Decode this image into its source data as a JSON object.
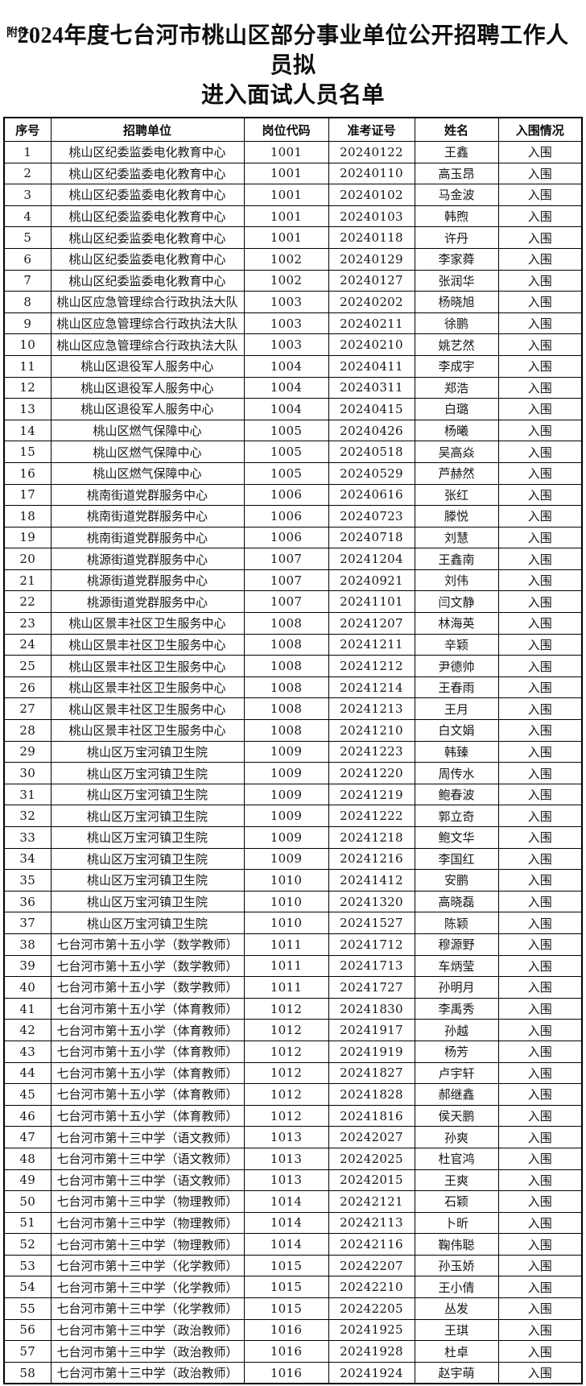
{
  "attachment_label": "附件1：",
  "title": {
    "line1": "2024年度七台河市桃山区部分事业单位公开招聘工作人员拟",
    "line2": "进入面试人员名单"
  },
  "colors": {
    "text": "#1a1a1a",
    "border": "#000000",
    "background": "#ffffff"
  },
  "table": {
    "headers": [
      "序号",
      "招聘单位",
      "岗位代码",
      "准考证号",
      "姓名",
      "入围情况"
    ],
    "rows": [
      [
        "1",
        "桃山区纪委监委电化教育中心",
        "1001",
        "20240122",
        "王鑫",
        "入围"
      ],
      [
        "2",
        "桃山区纪委监委电化教育中心",
        "1001",
        "20240110",
        "高玉昂",
        "入围"
      ],
      [
        "3",
        "桃山区纪委监委电化教育中心",
        "1001",
        "20240102",
        "马金波",
        "入围"
      ],
      [
        "4",
        "桃山区纪委监委电化教育中心",
        "1001",
        "20240103",
        "韩煦",
        "入围"
      ],
      [
        "5",
        "桃山区纪委监委电化教育中心",
        "1001",
        "20240118",
        "许丹",
        "入围"
      ],
      [
        "6",
        "桃山区纪委监委电化教育中心",
        "1002",
        "20240129",
        "李家蕣",
        "入围"
      ],
      [
        "7",
        "桃山区纪委监委电化教育中心",
        "1002",
        "20240127",
        "张润华",
        "入围"
      ],
      [
        "8",
        "桃山区应急管理综合行政执法大队",
        "1003",
        "20240202",
        "杨晓旭",
        "入围"
      ],
      [
        "9",
        "桃山区应急管理综合行政执法大队",
        "1003",
        "20240211",
        "徐鹏",
        "入围"
      ],
      [
        "10",
        "桃山区应急管理综合行政执法大队",
        "1003",
        "20240210",
        "姚艺然",
        "入围"
      ],
      [
        "11",
        "桃山区退役军人服务中心",
        "1004",
        "20240411",
        "李成宇",
        "入围"
      ],
      [
        "12",
        "桃山区退役军人服务中心",
        "1004",
        "20240311",
        "郑浩",
        "入围"
      ],
      [
        "13",
        "桃山区退役军人服务中心",
        "1004",
        "20240415",
        "白璐",
        "入围"
      ],
      [
        "14",
        "桃山区燃气保障中心",
        "1005",
        "20240426",
        "杨曦",
        "入围"
      ],
      [
        "15",
        "桃山区燃气保障中心",
        "1005",
        "20240518",
        "吴高焱",
        "入围"
      ],
      [
        "16",
        "桃山区燃气保障中心",
        "1005",
        "20240529",
        "芦赫然",
        "入围"
      ],
      [
        "17",
        "桃南街道党群服务中心",
        "1006",
        "20240616",
        "张红",
        "入围"
      ],
      [
        "18",
        "桃南街道党群服务中心",
        "1006",
        "20240723",
        "滕悦",
        "入围"
      ],
      [
        "19",
        "桃南街道党群服务中心",
        "1006",
        "20240718",
        "刘慧",
        "入围"
      ],
      [
        "20",
        "桃源街道党群服务中心",
        "1007",
        "20241204",
        "王鑫南",
        "入围"
      ],
      [
        "21",
        "桃源街道党群服务中心",
        "1007",
        "20240921",
        "刘伟",
        "入围"
      ],
      [
        "22",
        "桃源街道党群服务中心",
        "1007",
        "20241101",
        "闫文静",
        "入围"
      ],
      [
        "23",
        "桃山区景丰社区卫生服务中心",
        "1008",
        "20241207",
        "林海英",
        "入围"
      ],
      [
        "24",
        "桃山区景丰社区卫生服务中心",
        "1008",
        "20241211",
        "辛颖",
        "入围"
      ],
      [
        "25",
        "桃山区景丰社区卫生服务中心",
        "1008",
        "20241212",
        "尹德帅",
        "入围"
      ],
      [
        "26",
        "桃山区景丰社区卫生服务中心",
        "1008",
        "20241214",
        "王春雨",
        "入围"
      ],
      [
        "27",
        "桃山区景丰社区卫生服务中心",
        "1008",
        "20241213",
        "王月",
        "入围"
      ],
      [
        "28",
        "桃山区景丰社区卫生服务中心",
        "1008",
        "20241210",
        "白文娟",
        "入围"
      ],
      [
        "29",
        "桃山区万宝河镇卫生院",
        "1009",
        "20241223",
        "韩臻",
        "入围"
      ],
      [
        "30",
        "桃山区万宝河镇卫生院",
        "1009",
        "20241220",
        "周传水",
        "入围"
      ],
      [
        "31",
        "桃山区万宝河镇卫生院",
        "1009",
        "20241219",
        "鲍春波",
        "入围"
      ],
      [
        "32",
        "桃山区万宝河镇卫生院",
        "1009",
        "20241222",
        "郭立奇",
        "入围"
      ],
      [
        "33",
        "桃山区万宝河镇卫生院",
        "1009",
        "20241218",
        "鲍文华",
        "入围"
      ],
      [
        "34",
        "桃山区万宝河镇卫生院",
        "1009",
        "20241216",
        "李国红",
        "入围"
      ],
      [
        "35",
        "桃山区万宝河镇卫生院",
        "1010",
        "20241412",
        "安鹏",
        "入围"
      ],
      [
        "36",
        "桃山区万宝河镇卫生院",
        "1010",
        "20241320",
        "高晓磊",
        "入围"
      ],
      [
        "37",
        "桃山区万宝河镇卫生院",
        "1010",
        "20241527",
        "陈颖",
        "入围"
      ],
      [
        "38",
        "七台河市第十五小学（数学教师）",
        "1011",
        "20241712",
        "穆源野",
        "入围"
      ],
      [
        "39",
        "七台河市第十五小学（数学教师）",
        "1011",
        "20241713",
        "车炳莹",
        "入围"
      ],
      [
        "40",
        "七台河市第十五小学（数学教师）",
        "1011",
        "20241727",
        "孙明月",
        "入围"
      ],
      [
        "41",
        "七台河市第十五小学（体育教师）",
        "1012",
        "20241830",
        "李禹秀",
        "入围"
      ],
      [
        "42",
        "七台河市第十五小学（体育教师）",
        "1012",
        "20241917",
        "孙越",
        "入围"
      ],
      [
        "43",
        "七台河市第十五小学（体育教师）",
        "1012",
        "20241919",
        "杨芳",
        "入围"
      ],
      [
        "44",
        "七台河市第十五小学（体育教师）",
        "1012",
        "20241827",
        "卢宇轩",
        "入围"
      ],
      [
        "45",
        "七台河市第十五小学（体育教师）",
        "1012",
        "20241828",
        "郝继鑫",
        "入围"
      ],
      [
        "46",
        "七台河市第十五小学（体育教师）",
        "1012",
        "20241816",
        "侯天鹏",
        "入围"
      ],
      [
        "47",
        "七台河市第十三中学（语文教师）",
        "1013",
        "20242027",
        "孙爽",
        "入围"
      ],
      [
        "48",
        "七台河市第十三中学（语文教师）",
        "1013",
        "20242025",
        "杜官鸿",
        "入围"
      ],
      [
        "49",
        "七台河市第十三中学（语文教师）",
        "1013",
        "20242015",
        "王爽",
        "入围"
      ],
      [
        "50",
        "七台河市第十三中学（物理教师）",
        "1014",
        "20242121",
        "石颖",
        "入围"
      ],
      [
        "51",
        "七台河市第十三中学（物理教师）",
        "1014",
        "20242113",
        "卜昕",
        "入围"
      ],
      [
        "52",
        "七台河市第十三中学（物理教师）",
        "1014",
        "20242116",
        "鞠伟聪",
        "入围"
      ],
      [
        "53",
        "七台河市第十三中学（化学教师）",
        "1015",
        "20242207",
        "孙玉娇",
        "入围"
      ],
      [
        "54",
        "七台河市第十三中学（化学教师）",
        "1015",
        "20242210",
        "王小倩",
        "入围"
      ],
      [
        "55",
        "七台河市第十三中学（化学教师）",
        "1015",
        "20242205",
        "丛发",
        "入围"
      ],
      [
        "56",
        "七台河市第十三中学（政治教师）",
        "1016",
        "20241925",
        "王琪",
        "入围"
      ],
      [
        "57",
        "七台河市第十三中学（政治教师）",
        "1016",
        "20241928",
        "杜卓",
        "入围"
      ],
      [
        "58",
        "七台河市第十三中学（政治教师）",
        "1016",
        "20241924",
        "赵宇萌",
        "入围"
      ]
    ]
  }
}
